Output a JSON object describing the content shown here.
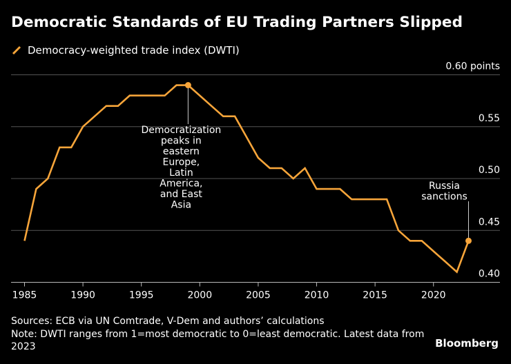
{
  "colors": {
    "background": "#000000",
    "series": "#f7a53a",
    "grid": "#555555",
    "text": "#ffffff",
    "annotation_line": "#cccccc"
  },
  "legend_icon": "diagonal-line-icon",
  "chart_data": {
    "type": "line",
    "title": "Democratic Standards of EU Trading Partners Slipped",
    "series": [
      {
        "name": "Democracy-weighted trade index (DWTI)",
        "x": [
          1985,
          1986,
          1987,
          1988,
          1989,
          1990,
          1991,
          1992,
          1993,
          1994,
          1995,
          1996,
          1997,
          1998,
          1999,
          2000,
          2001,
          2002,
          2003,
          2004,
          2005,
          2006,
          2007,
          2008,
          2009,
          2010,
          2011,
          2012,
          2013,
          2014,
          2015,
          2016,
          2017,
          2018,
          2019,
          2020,
          2021,
          2022,
          2023
        ],
        "values": [
          0.44,
          0.49,
          0.5,
          0.53,
          0.53,
          0.55,
          0.56,
          0.57,
          0.57,
          0.58,
          0.58,
          0.58,
          0.58,
          0.59,
          0.59,
          0.58,
          0.57,
          0.56,
          0.56,
          0.54,
          0.52,
          0.51,
          0.51,
          0.5,
          0.51,
          0.49,
          0.49,
          0.49,
          0.48,
          0.48,
          0.48,
          0.48,
          0.45,
          0.44,
          0.44,
          0.43,
          0.42,
          0.41,
          0.44
        ]
      }
    ],
    "xlim": [
      1985,
      2023
    ],
    "ylim": [
      0.4,
      0.6
    ],
    "x_ticks": [
      1985,
      1990,
      1995,
      2000,
      2005,
      2010,
      2015,
      2020
    ],
    "x_tick_labels": [
      "1985",
      "1990",
      "1995",
      "2000",
      "2005",
      "2010",
      "2015",
      "2020"
    ],
    "y_ticks": [
      0.4,
      0.45,
      0.5,
      0.55,
      0.6
    ],
    "y_tick_labels": [
      "0.40",
      "0.45",
      "0.50",
      "0.55",
      "0.60 points"
    ],
    "grid": true,
    "annotations": [
      {
        "x": 1999,
        "y": 0.59,
        "text": "Democratization peaks in eastern Europe, Latin America, and East Asia",
        "lines": [
          "Democratization",
          "peaks in",
          "eastern",
          "Europe,",
          "Latin",
          "America,",
          "and East",
          "Asia"
        ]
      },
      {
        "x": 2023,
        "y": 0.44,
        "text": "Russia sanctions",
        "lines": [
          "Russia",
          "sanctions"
        ]
      }
    ]
  },
  "footer": {
    "sources": "Sources: ECB via UN Comtrade, V-Dem and authors’ calculations",
    "note": "Note: DWTI ranges from 1=most democratic to 0=least democratic. Latest data from 2023",
    "brand": "Bloomberg"
  }
}
